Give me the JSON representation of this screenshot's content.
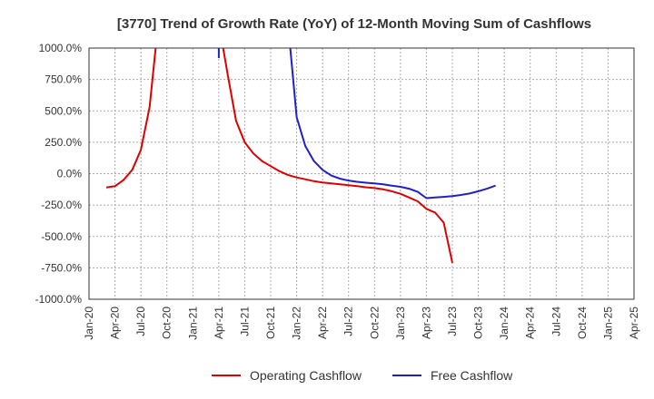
{
  "chart_data": {
    "type": "line",
    "title": "[3770]  Trend of Growth Rate (YoY) of 12-Month Moving Sum of Cashflows",
    "xlabel": "",
    "ylabel": "",
    "ylim": [
      -1000,
      1000
    ],
    "x_ticks": [
      "Jan-20",
      "Apr-20",
      "Jul-20",
      "Oct-20",
      "Jan-21",
      "Apr-21",
      "Jul-21",
      "Oct-21",
      "Jan-22",
      "Apr-22",
      "Jul-22",
      "Oct-22",
      "Jan-23",
      "Apr-23",
      "Jul-23",
      "Oct-23",
      "Jan-24",
      "Apr-24",
      "Jul-24",
      "Oct-24",
      "Jan-25",
      "Apr-25"
    ],
    "y_ticks": [
      "1000.0%",
      "750.0%",
      "500.0%",
      "250.0%",
      "0.0%",
      "-250.0%",
      "-500.0%",
      "-750.0%",
      "-1000.0%"
    ],
    "y_tick_values": [
      1000,
      750,
      500,
      250,
      0,
      -250,
      -500,
      -750,
      -1000
    ],
    "grid": true,
    "legend_position": "bottom",
    "series": [
      {
        "name": "Operating Cashflow",
        "color": "#e00000",
        "points": [
          [
            "2020-03",
            -110
          ],
          [
            "2020-04",
            -100
          ],
          [
            "2020-05",
            -50
          ],
          [
            "2020-06",
            30
          ],
          [
            "2020-07",
            190
          ],
          [
            "2020-08",
            530
          ],
          [
            "2020-09",
            1200
          ],
          [
            "2021-04",
            1200
          ],
          [
            "2021-05",
            800
          ],
          [
            "2021-06",
            420
          ],
          [
            "2021-07",
            250
          ],
          [
            "2021-08",
            160
          ],
          [
            "2021-09",
            100
          ],
          [
            "2021-10",
            60
          ],
          [
            "2021-11",
            20
          ],
          [
            "2021-12",
            -10
          ],
          [
            "2022-01",
            -30
          ],
          [
            "2022-02",
            -45
          ],
          [
            "2022-03",
            -60
          ],
          [
            "2022-04",
            -70
          ],
          [
            "2022-05",
            -78
          ],
          [
            "2022-06",
            -85
          ],
          [
            "2022-07",
            -92
          ],
          [
            "2022-08",
            -100
          ],
          [
            "2022-09",
            -108
          ],
          [
            "2022-10",
            -115
          ],
          [
            "2022-11",
            -125
          ],
          [
            "2022-12",
            -140
          ],
          [
            "2023-01",
            -160
          ],
          [
            "2023-02",
            -190
          ],
          [
            "2023-03",
            -220
          ],
          [
            "2023-04",
            -280
          ],
          [
            "2023-05",
            -310
          ],
          [
            "2023-06",
            -390
          ],
          [
            "2023-07",
            -710
          ]
        ]
      },
      {
        "name": "Free Cashflow",
        "color": "#1f1fcf",
        "points": [
          [
            "2021-04",
            920
          ],
          [
            "2021-04",
            1200
          ],
          [
            "2021-12",
            1200
          ],
          [
            "2022-01",
            450
          ],
          [
            "2022-02",
            220
          ],
          [
            "2022-03",
            100
          ],
          [
            "2022-04",
            30
          ],
          [
            "2022-05",
            -15
          ],
          [
            "2022-06",
            -40
          ],
          [
            "2022-07",
            -55
          ],
          [
            "2022-08",
            -65
          ],
          [
            "2022-09",
            -72
          ],
          [
            "2022-10",
            -78
          ],
          [
            "2022-11",
            -85
          ],
          [
            "2022-12",
            -95
          ],
          [
            "2023-01",
            -105
          ],
          [
            "2023-02",
            -120
          ],
          [
            "2023-03",
            -145
          ],
          [
            "2023-04",
            -195
          ],
          [
            "2023-05",
            -190
          ],
          [
            "2023-06",
            -185
          ],
          [
            "2023-07",
            -178
          ],
          [
            "2023-08",
            -170
          ],
          [
            "2023-09",
            -158
          ],
          [
            "2023-10",
            -140
          ],
          [
            "2023-11",
            -120
          ],
          [
            "2023-12",
            -95
          ]
        ],
        "segments": [
          [
            0,
            1
          ],
          [
            2,
            26
          ]
        ]
      }
    ]
  }
}
